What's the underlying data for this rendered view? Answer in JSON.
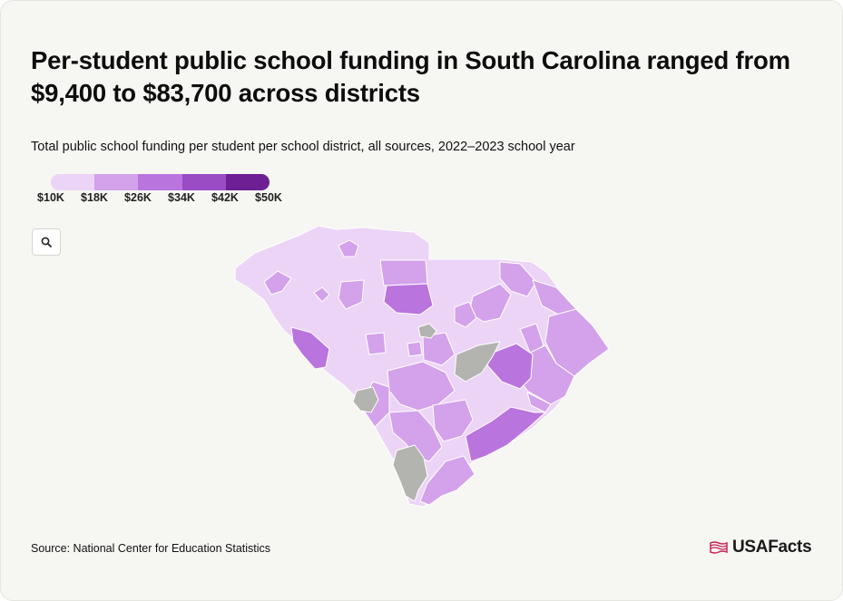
{
  "title": "Per-student public school funding in South Carolina ranged from $9,400 to $83,700 across districts",
  "subtitle": "Total public school funding per student per school district, all sources, 2022–2023 school year",
  "legend": {
    "labels": [
      "$10K",
      "$18K",
      "$26K",
      "$34K",
      "$42K",
      "$50K"
    ],
    "colors": [
      "#ecd4f7",
      "#d3a2ea",
      "#ba74de",
      "#9a4cc4",
      "#6e1f94"
    ]
  },
  "no_data_color": "#b3b3b0",
  "map_outline_color": "#ffffff",
  "search_icon": "magnifier",
  "source": "Source: National Center for Education Statistics",
  "logo": {
    "text": "USAFacts",
    "icon": "us-flag-outline",
    "icon_color": "#c8245a"
  }
}
